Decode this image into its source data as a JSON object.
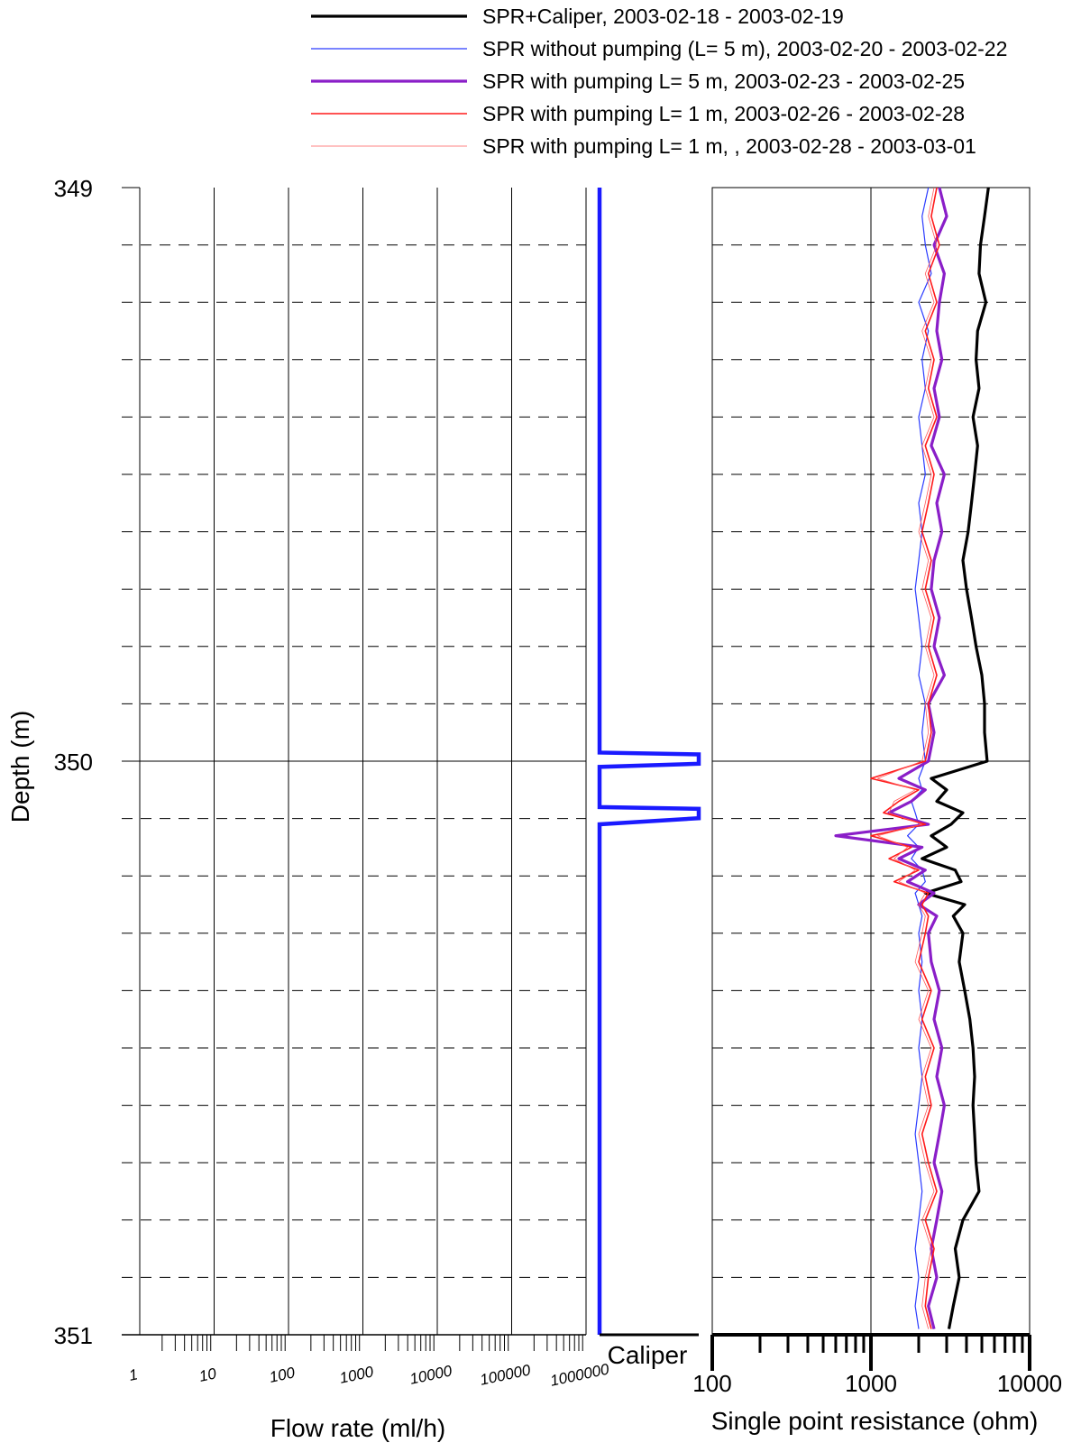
{
  "legend": [
    {
      "label": "SPR+Caliper, 2003-02-18 - 2003-02-19",
      "color": "#000000",
      "width": 3.2
    },
    {
      "label": "SPR without pumping (L= 5 m), 2003-02-20 - 2003-02-22",
      "color": "#2a3bff",
      "width": 1.2
    },
    {
      "label": "SPR with pumping L= 5 m, 2003-02-23 - 2003-02-25",
      "color": "#8a1ec8",
      "width": 3.2
    },
    {
      "label": "SPR with pumping L= 1 m, 2003-02-26 - 2003-02-28",
      "color": "#ff1a1a",
      "width": 1.6
    },
    {
      "label": "SPR with pumping L= 1 m, , 2003-02-28 - 2003-03-01",
      "color": "#ff5a5a",
      "width": 0.8
    }
  ],
  "axes": {
    "depth_label": "Depth (m)",
    "depth_ticks": [
      "349",
      "350",
      "351"
    ],
    "flow_label": "Flow rate (ml/h)",
    "flow_ticks": [
      "1",
      "10",
      "100",
      "1000",
      "10000",
      "100000",
      "1000000"
    ],
    "caliper_label": "Caliper",
    "spr_label": "Single point resistance (ohm)",
    "spr_ticks": [
      "100",
      "1000",
      "10000"
    ]
  },
  "chart_data": [
    {
      "type": "line",
      "panel": "flow",
      "xlabel": "Flow rate (ml/h)",
      "ylabel": "Depth (m)",
      "x_scale": "log",
      "xlim": [
        1,
        1000000
      ],
      "ylim": [
        351,
        349
      ],
      "series": []
    },
    {
      "type": "line",
      "panel": "caliper",
      "label": "Caliper",
      "ylim": [
        351,
        349
      ],
      "caliper_values": {
        "baseline": 0.0,
        "anomalies": [
          {
            "depth_top": 349.985,
            "depth_peak": 349.995,
            "depth_bottom": 350.01,
            "peak": 1.0
          },
          {
            "depth_top": 350.08,
            "depth_peak": 350.09,
            "depth_bottom": 350.11,
            "peak": 1.0
          }
        ]
      }
    },
    {
      "type": "line",
      "panel": "spr",
      "xlabel": "Single point resistance (ohm)",
      "ylabel": "Depth (m)",
      "x_scale": "log",
      "xlim": [
        100,
        10000
      ],
      "ylim": [
        351,
        349
      ],
      "grid": true,
      "series": [
        {
          "name": "SPR+Caliper, 2003-02-18 - 2003-02-19",
          "depth": [
            349.0,
            349.05,
            349.1,
            349.15,
            349.2,
            349.25,
            349.3,
            349.35,
            349.4,
            349.45,
            349.5,
            349.55,
            349.6,
            349.65,
            349.7,
            349.75,
            349.8,
            349.85,
            349.9,
            349.95,
            350.0,
            350.03,
            350.05,
            350.07,
            350.09,
            350.11,
            350.13,
            350.15,
            350.17,
            350.19,
            350.21,
            350.23,
            350.25,
            350.27,
            350.3,
            350.35,
            350.4,
            350.45,
            350.5,
            350.55,
            350.6,
            350.65,
            350.7,
            350.75,
            350.8,
            350.85,
            350.9,
            350.95,
            350.99
          ],
          "values": [
            5500,
            5200,
            4900,
            4800,
            5300,
            4700,
            4600,
            4800,
            4400,
            4700,
            4500,
            4300,
            4100,
            3800,
            4000,
            4300,
            4600,
            5000,
            5200,
            5200,
            5400,
            2400,
            3000,
            2600,
            3800,
            3200,
            2400,
            3000,
            2100,
            3400,
            3700,
            2200,
            3900,
            3300,
            3800,
            3600,
            3900,
            4200,
            4400,
            4500,
            4400,
            4500,
            4600,
            4800,
            3800,
            3400,
            3600,
            3300,
            3100
          ]
        },
        {
          "name": "SPR without pumping (L= 5 m), 2003-02-20 - 2003-02-22",
          "depth": [
            349.0,
            349.05,
            349.1,
            349.15,
            349.2,
            349.25,
            349.3,
            349.35,
            349.4,
            349.45,
            349.5,
            349.55,
            349.6,
            349.65,
            349.7,
            349.75,
            349.8,
            349.85,
            349.9,
            349.95,
            350.0,
            350.03,
            350.05,
            350.07,
            350.09,
            350.11,
            350.13,
            350.15,
            350.17,
            350.19,
            350.21,
            350.23,
            350.25,
            350.27,
            350.3,
            350.35,
            350.4,
            350.45,
            350.5,
            350.55,
            350.6,
            350.65,
            350.7,
            350.75,
            350.8,
            350.85,
            350.9,
            350.95,
            350.99
          ],
          "values": [
            2300,
            2100,
            2200,
            2400,
            2000,
            2300,
            2100,
            2200,
            2000,
            2100,
            2200,
            2000,
            2100,
            2000,
            1900,
            2000,
            2100,
            2000,
            2200,
            2100,
            2200,
            2000,
            2100,
            1800,
            1900,
            2000,
            1700,
            2000,
            1800,
            2100,
            2200,
            1900,
            2000,
            2100,
            2000,
            2100,
            2000,
            2100,
            2000,
            2100,
            2000,
            1900,
            2000,
            2100,
            2000,
            1900,
            2000,
            1900,
            2000
          ]
        },
        {
          "name": "SPR with pumping L= 5 m, 2003-02-23 - 2003-02-25",
          "depth": [
            349.0,
            349.05,
            349.1,
            349.15,
            349.2,
            349.25,
            349.3,
            349.35,
            349.4,
            349.45,
            349.5,
            349.55,
            349.6,
            349.65,
            349.7,
            349.75,
            349.8,
            349.85,
            349.9,
            349.95,
            350.0,
            350.03,
            350.05,
            350.07,
            350.09,
            350.11,
            350.13,
            350.15,
            350.17,
            350.19,
            350.21,
            350.23,
            350.25,
            350.27,
            350.3,
            350.35,
            350.4,
            350.45,
            350.5,
            350.55,
            350.6,
            350.65,
            350.7,
            350.75,
            350.8,
            350.85,
            350.9,
            350.95,
            350.99
          ],
          "values": [
            2700,
            3000,
            2500,
            2900,
            2700,
            2600,
            2800,
            2500,
            2700,
            2400,
            2900,
            2600,
            2800,
            2500,
            2400,
            2700,
            2500,
            2900,
            2300,
            2500,
            2300,
            1500,
            2200,
            1800,
            1300,
            2300,
            600,
            2100,
            1500,
            2200,
            1700,
            2500,
            2000,
            2600,
            2300,
            2400,
            2700,
            2500,
            2800,
            2600,
            2900,
            2700,
            2500,
            2800,
            2600,
            2400,
            2600,
            2300,
            2500
          ]
        },
        {
          "name": "SPR with pumping L= 1 m, 2003-02-26 - 2003-02-28",
          "depth": [
            349.0,
            349.05,
            349.1,
            349.15,
            349.2,
            349.25,
            349.3,
            349.35,
            349.4,
            349.45,
            349.5,
            349.55,
            349.6,
            349.65,
            349.7,
            349.75,
            349.8,
            349.85,
            349.9,
            349.95,
            350.0,
            350.03,
            350.05,
            350.07,
            350.09,
            350.11,
            350.13,
            350.15,
            350.17,
            350.19,
            350.21,
            350.23,
            350.25,
            350.27,
            350.3,
            350.35,
            350.4,
            350.45,
            350.5,
            350.55,
            350.6,
            350.65,
            350.7,
            350.75,
            350.8,
            350.85,
            350.9,
            350.95,
            350.99
          ],
          "values": [
            2600,
            2400,
            2700,
            2300,
            2600,
            2200,
            2500,
            2300,
            2600,
            2200,
            2500,
            2300,
            2100,
            2400,
            2200,
            2500,
            2300,
            2600,
            2300,
            2400,
            2200,
            1000,
            2000,
            1500,
            1200,
            2200,
            1000,
            1800,
            1300,
            2000,
            1400,
            2300,
            2100,
            2300,
            2200,
            2000,
            2400,
            2100,
            2500,
            2200,
            2400,
            2100,
            2300,
            2600,
            2200,
            2500,
            2300,
            2200,
            2400
          ]
        },
        {
          "name": "SPR with pumping L= 1 m, , 2003-02-28 - 2003-03-01",
          "depth": [
            349.0,
            349.05,
            349.1,
            349.15,
            349.2,
            349.25,
            349.3,
            349.35,
            349.4,
            349.45,
            349.5,
            349.55,
            349.6,
            349.65,
            349.7,
            349.75,
            349.8,
            349.85,
            349.9,
            349.95,
            350.0,
            350.03,
            350.05,
            350.07,
            350.09,
            350.11,
            350.13,
            350.15,
            350.17,
            350.19,
            350.21,
            350.23,
            350.25,
            350.27,
            350.3,
            350.35,
            350.4,
            350.45,
            350.5,
            350.55,
            350.6,
            350.65,
            350.7,
            350.75,
            350.8,
            350.85,
            350.9,
            350.95,
            350.99
          ],
          "values": [
            2500,
            2300,
            2600,
            2200,
            2500,
            2100,
            2400,
            2200,
            2500,
            2100,
            2400,
            2200,
            2000,
            2300,
            2100,
            2400,
            2200,
            2500,
            2200,
            2300,
            2100,
            1100,
            1900,
            1400,
            1300,
            2100,
            1100,
            1700,
            1400,
            1900,
            1500,
            2200,
            2000,
            2200,
            2100,
            1900,
            2300,
            2000,
            2400,
            2100,
            2300,
            2000,
            2200,
            2500,
            2100,
            2400,
            2200,
            2100,
            2300
          ]
        }
      ]
    }
  ]
}
